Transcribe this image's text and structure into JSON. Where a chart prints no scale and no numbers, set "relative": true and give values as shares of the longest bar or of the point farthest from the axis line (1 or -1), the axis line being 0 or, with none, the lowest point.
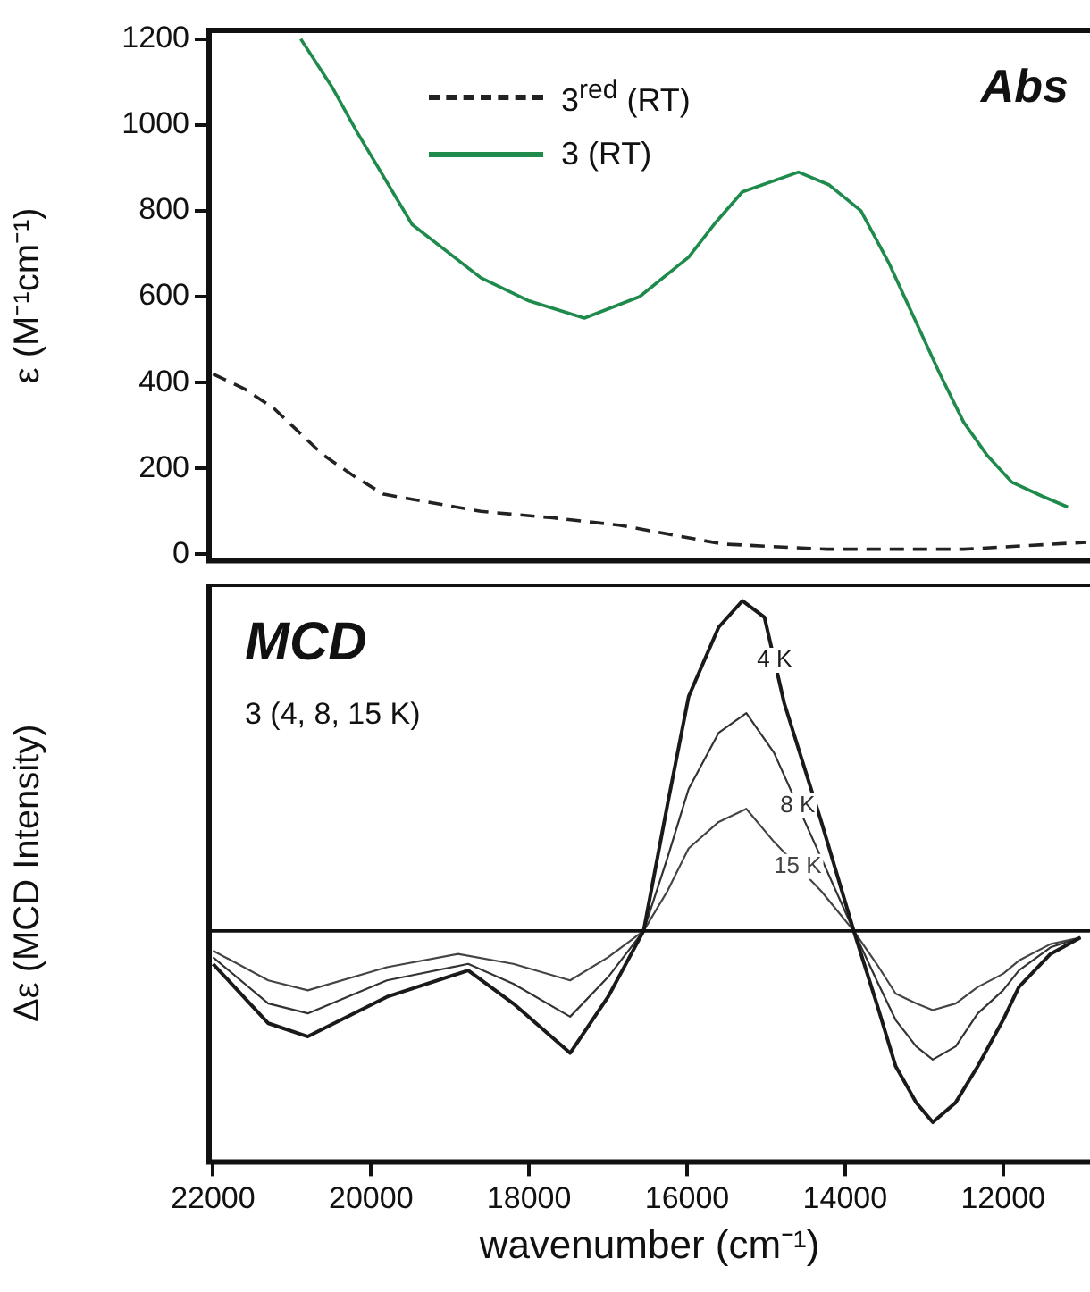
{
  "chart_data": [
    {
      "type": "line",
      "ylabel": "ε (M⁻¹cm⁻¹)",
      "xlim": [
        22050,
        10900
      ],
      "xticks": [
        22000,
        20000,
        18000,
        16000,
        14000,
        12000
      ],
      "tick_labels": "y",
      "ylim": [
        -15,
        1220
      ],
      "yticks": [
        0,
        200,
        400,
        600,
        800,
        1000,
        1200
      ],
      "grid": false,
      "legend": "top",
      "annotations": [
        "Abs"
      ],
      "series": [
        {
          "name": "3$^{red}$ (RT)",
          "color": "#222222",
          "line_style": "dashed",
          "x": [
            22000,
            21600,
            21230,
            20610,
            20200,
            19840,
            18610,
            17700,
            16860,
            15550,
            14230,
            12500,
            10950
          ],
          "values": [
            420,
            385,
            340,
            232,
            180,
            140,
            100,
            85,
            68,
            24,
            12,
            12,
            28
          ]
        },
        {
          "name": "3 (RT)",
          "color": "#1e8a4c",
          "line_style": "solid",
          "x": [
            20890,
            20500,
            20180,
            19480,
            18610,
            18000,
            17300,
            16600,
            15980,
            15650,
            15300,
            14590,
            14200,
            13800,
            13450,
            13100,
            12800,
            12500,
            12200,
            11890,
            11500,
            11180
          ],
          "values": [
            1200,
            1090,
            984,
            768,
            644,
            590,
            550,
            600,
            692,
            770,
            844,
            890,
            860,
            800,
            680,
            540,
            420,
            308,
            230,
            168,
            135,
            110
          ]
        }
      ]
    },
    {
      "type": "line",
      "relative": true,
      "xlabel": "wavenumber (cm⁻¹)",
      "ylabel": "Δε (MCD Intensity)",
      "xlim": [
        22050,
        10900
      ],
      "xticks": [
        22000,
        20000,
        18000,
        16000,
        14000,
        12000
      ],
      "tick_labels": "x",
      "grid": false,
      "legend": false,
      "annotations": [
        "MCD",
        "3 (4, 8, 15 K)"
      ],
      "ref_lines": [
        {
          "axis": "y",
          "value": 0
        }
      ],
      "series": [
        {
          "name": "4 K",
          "color": "#1a1a1a",
          "x": [
            22000,
            21300,
            20800,
            19800,
            18770,
            18200,
            17480,
            17000,
            16550,
            16250,
            15980,
            15600,
            15300,
            15020,
            14770,
            14300,
            13890,
            13600,
            13360,
            13100,
            12890,
            12600,
            12320,
            12000,
            11800,
            11400,
            11020
          ],
          "values": [
            -0.1,
            -0.28,
            -0.32,
            -0.2,
            -0.12,
            -0.22,
            -0.37,
            -0.2,
            0,
            0.38,
            0.71,
            0.92,
            1,
            0.95,
            0.69,
            0.33,
            0,
            -0.22,
            -0.41,
            -0.52,
            -0.58,
            -0.52,
            -0.41,
            -0.27,
            -0.17,
            -0.07,
            -0.02
          ]
        },
        {
          "name": "8 K",
          "color": "#333333",
          "x": [
            22000,
            21300,
            20800,
            19800,
            18770,
            18200,
            17480,
            17000,
            16550,
            16250,
            15980,
            15600,
            15250,
            14900,
            14300,
            13890,
            13600,
            13360,
            13100,
            12890,
            12600,
            12320,
            12000,
            11800,
            11400,
            11020
          ],
          "values": [
            -0.08,
            -0.22,
            -0.25,
            -0.15,
            -0.1,
            -0.16,
            -0.26,
            -0.14,
            0,
            0.22,
            0.43,
            0.6,
            0.66,
            0.54,
            0.22,
            0,
            -0.15,
            -0.27,
            -0.35,
            -0.39,
            -0.35,
            -0.25,
            -0.18,
            -0.12,
            -0.05,
            -0.02
          ]
        },
        {
          "name": "15 K",
          "color": "#444444",
          "x": [
            22000,
            21300,
            20800,
            19800,
            18900,
            18200,
            17480,
            17000,
            16550,
            16250,
            15980,
            15600,
            15250,
            14900,
            14300,
            13890,
            13600,
            13360,
            13100,
            12890,
            12600,
            12320,
            12000,
            11800,
            11400,
            11020
          ],
          "values": [
            -0.06,
            -0.15,
            -0.18,
            -0.11,
            -0.07,
            -0.1,
            -0.15,
            -0.08,
            0,
            0.12,
            0.25,
            0.33,
            0.37,
            0.27,
            0.12,
            0,
            -0.1,
            -0.19,
            -0.22,
            -0.24,
            -0.22,
            -0.17,
            -0.13,
            -0.09,
            -0.04,
            -0.02
          ]
        }
      ]
    }
  ]
}
